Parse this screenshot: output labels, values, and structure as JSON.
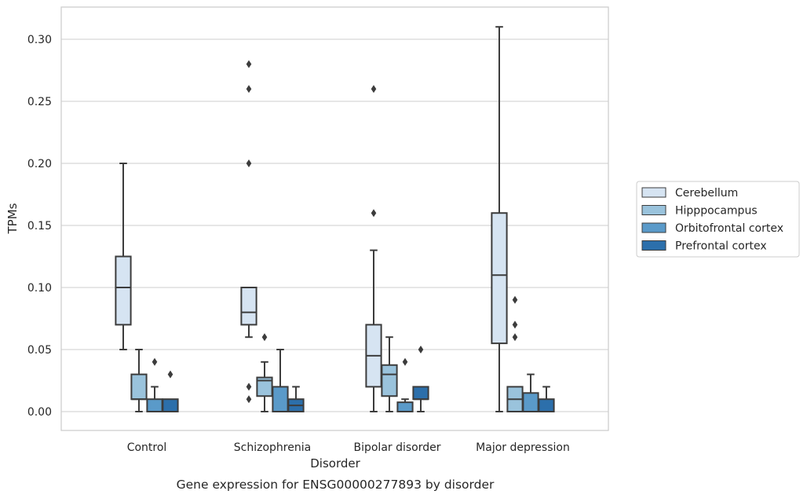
{
  "chart_data": {
    "type": "box",
    "title": "",
    "caption": "Gene expression for ENSG00000277893 by disorder",
    "xlabel": "Disorder",
    "ylabel": "TPMs",
    "ylim": [
      -0.015,
      0.325
    ],
    "yticks": [
      0.0,
      0.05,
      0.1,
      0.15,
      0.2,
      0.25,
      0.3
    ],
    "ytick_labels": [
      "0.00",
      "0.05",
      "0.10",
      "0.15",
      "0.20",
      "0.25",
      "0.30"
    ],
    "grid": "horizontal",
    "legend_position": "right",
    "categories": [
      "Control",
      "Schizophrenia",
      "Bipolar disorder",
      "Major depression"
    ],
    "series": [
      {
        "name": "Cerebellum",
        "color": "#d6e4f2",
        "boxes": [
          {
            "whislo": 0.05,
            "q1": 0.07,
            "med": 0.1,
            "q3": 0.125,
            "whishi": 0.2,
            "fliers": []
          },
          {
            "whislo": 0.06,
            "q1": 0.07,
            "med": 0.08,
            "q3": 0.1,
            "whishi": 0.1,
            "fliers": [
              0.02,
              0.01,
              0.2,
              0.26,
              0.28
            ]
          },
          {
            "whislo": 0.0,
            "q1": 0.02,
            "med": 0.045,
            "q3": 0.07,
            "whishi": 0.13,
            "fliers": [
              0.16,
              0.26
            ]
          },
          {
            "whislo": 0.0,
            "q1": 0.055,
            "med": 0.11,
            "q3": 0.16,
            "whishi": 0.31,
            "fliers": []
          }
        ]
      },
      {
        "name": "Hipppocampus",
        "color": "#9ac3dc",
        "boxes": [
          {
            "whislo": 0.0,
            "q1": 0.01,
            "med": 0.01,
            "q3": 0.03,
            "whishi": 0.05,
            "fliers": []
          },
          {
            "whislo": 0.0,
            "q1": 0.0125,
            "med": 0.025,
            "q3": 0.0275,
            "whishi": 0.04,
            "fliers": [
              0.06
            ]
          },
          {
            "whislo": 0.0,
            "q1": 0.0125,
            "med": 0.03,
            "q3": 0.0375,
            "whishi": 0.06,
            "fliers": []
          },
          {
            "whislo": 0.0,
            "q1": 0.0,
            "med": 0.01,
            "q3": 0.02,
            "whishi": 0.02,
            "fliers": [
              0.06,
              0.07,
              0.09
            ]
          }
        ]
      },
      {
        "name": "Orbitofrontal cortex",
        "color": "#5a9ac9",
        "boxes": [
          {
            "whislo": 0.0,
            "q1": 0.0,
            "med": 0.0,
            "q3": 0.01,
            "whishi": 0.02,
            "fliers": [
              0.04
            ]
          },
          {
            "whislo": 0.0,
            "q1": 0.0,
            "med": 0.0,
            "q3": 0.02,
            "whishi": 0.05,
            "fliers": []
          },
          {
            "whislo": 0.0,
            "q1": 0.0,
            "med": 0.0,
            "q3": 0.0075,
            "whishi": 0.01,
            "fliers": [
              0.04
            ]
          },
          {
            "whislo": 0.0,
            "q1": 0.0,
            "med": 0.0,
            "q3": 0.015,
            "whishi": 0.03,
            "fliers": []
          }
        ]
      },
      {
        "name": "Prefrontal cortex",
        "color": "#2c6fab",
        "boxes": [
          {
            "whislo": 0.0,
            "q1": 0.0,
            "med": 0.0,
            "q3": 0.01,
            "whishi": 0.01,
            "fliers": [
              0.03
            ]
          },
          {
            "whislo": 0.0,
            "q1": 0.0,
            "med": 0.005,
            "q3": 0.01,
            "whishi": 0.02,
            "fliers": []
          },
          {
            "whislo": 0.0,
            "q1": 0.01,
            "med": 0.01,
            "q3": 0.02,
            "whishi": 0.02,
            "fliers": [
              0.05
            ]
          },
          {
            "whislo": 0.0,
            "q1": 0.0,
            "med": 0.0,
            "q3": 0.01,
            "whishi": 0.02,
            "fliers": []
          }
        ]
      }
    ]
  }
}
